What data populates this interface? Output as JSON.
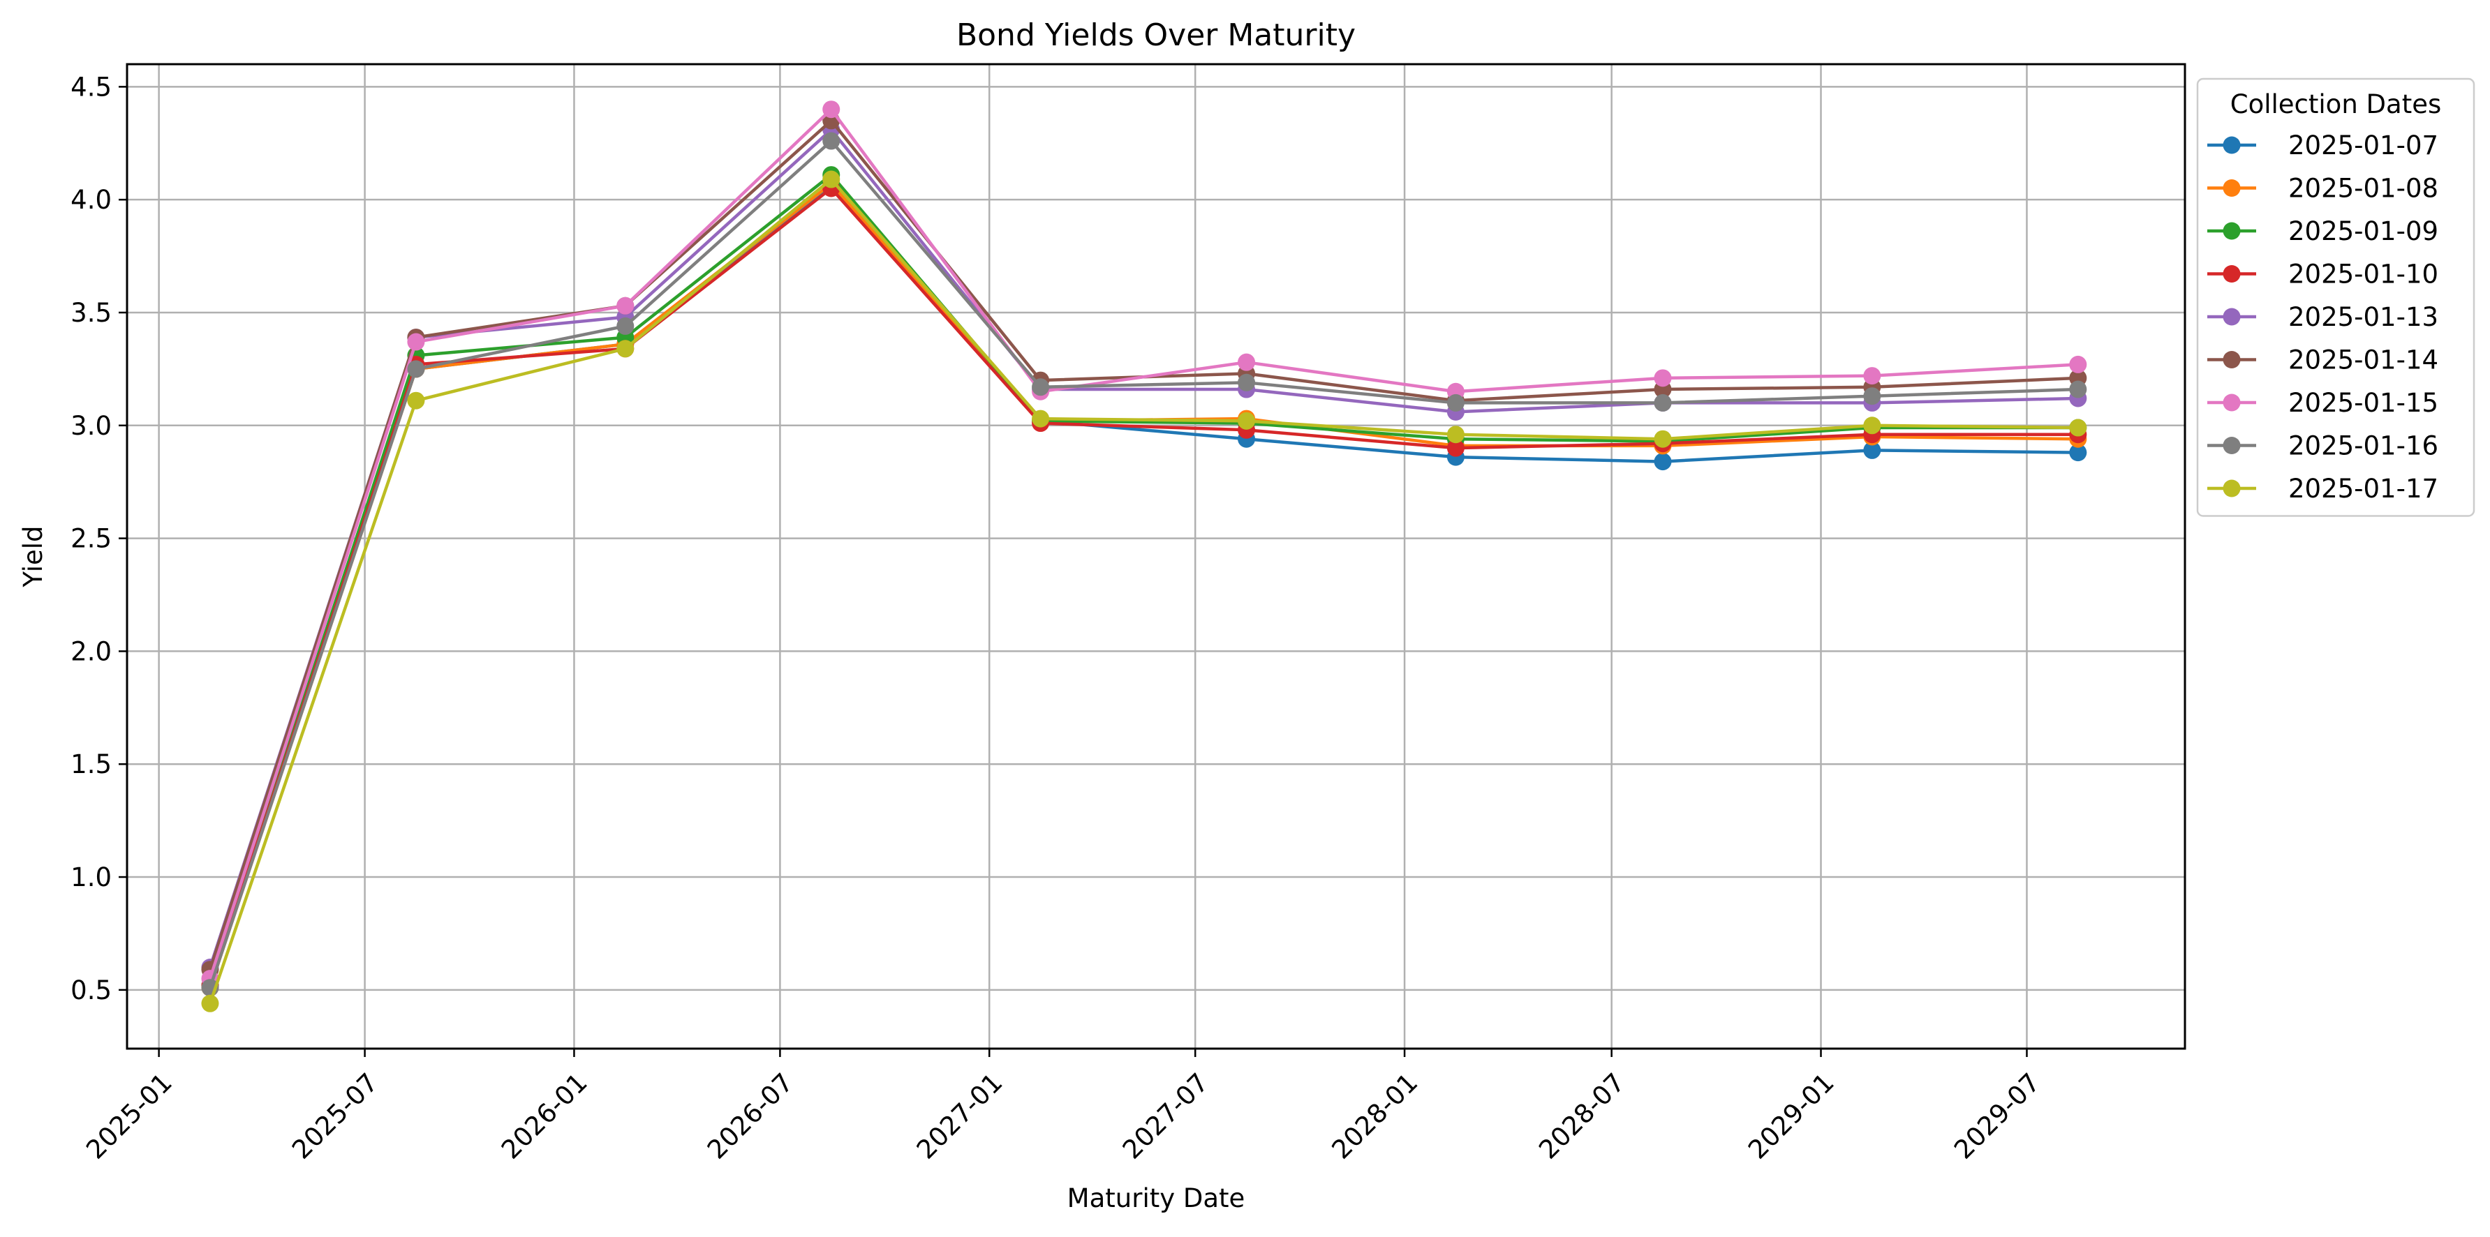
{
  "chart_data": {
    "type": "line",
    "title": "Bond Yields Over Maturity",
    "xlabel": "Maturity Date",
    "ylabel": "Yield",
    "x_scale": "date",
    "xlim": [
      "2024-12-04",
      "2029-11-17"
    ],
    "ylim": [
      0.24,
      4.6
    ],
    "grid": true,
    "x_ticks": [
      "2025-01",
      "2025-07",
      "2026-01",
      "2026-07",
      "2027-01",
      "2027-07",
      "2028-01",
      "2028-07",
      "2029-01",
      "2029-07"
    ],
    "y_ticks": [
      "0.5",
      "1.0",
      "1.5",
      "2.0",
      "2.5",
      "3.0",
      "3.5",
      "4.0",
      "4.5"
    ],
    "legend": {
      "title": "Collection Dates",
      "placement": "outside-right-top"
    },
    "x": [
      "2025-02-15",
      "2025-08-15",
      "2026-02-15",
      "2026-08-15",
      "2027-02-15",
      "2027-08-15",
      "2028-02-15",
      "2028-08-15",
      "2029-02-15",
      "2029-08-15"
    ],
    "series": [
      {
        "name": "2025-01-07",
        "color": "#1f77b4",
        "values": [
          0.52,
          3.25,
          3.36,
          4.06,
          3.02,
          2.94,
          2.86,
          2.84,
          2.89,
          2.88
        ]
      },
      {
        "name": "2025-01-08",
        "color": "#ff7f0e",
        "values": [
          0.51,
          3.25,
          3.36,
          4.07,
          3.02,
          3.03,
          2.91,
          2.91,
          2.95,
          2.94
        ]
      },
      {
        "name": "2025-01-09",
        "color": "#2ca02c",
        "values": [
          0.52,
          3.31,
          3.39,
          4.11,
          3.02,
          3.01,
          2.94,
          2.93,
          2.99,
          2.99
        ]
      },
      {
        "name": "2025-01-10",
        "color": "#d62728",
        "values": [
          0.52,
          3.27,
          3.34,
          4.05,
          3.01,
          2.98,
          2.9,
          2.92,
          2.96,
          2.96
        ]
      },
      {
        "name": "2025-01-13",
        "color": "#9467bd",
        "values": [
          0.6,
          3.39,
          3.48,
          4.31,
          3.16,
          3.16,
          3.06,
          3.1,
          3.1,
          3.12
        ]
      },
      {
        "name": "2025-01-14",
        "color": "#8c564b",
        "values": [
          0.59,
          3.39,
          3.53,
          4.35,
          3.2,
          3.23,
          3.11,
          3.16,
          3.17,
          3.21
        ]
      },
      {
        "name": "2025-01-15",
        "color": "#e377c2",
        "values": [
          0.55,
          3.37,
          3.53,
          4.4,
          3.15,
          3.28,
          3.15,
          3.21,
          3.22,
          3.27
        ]
      },
      {
        "name": "2025-01-16",
        "color": "#7f7f7f",
        "values": [
          0.51,
          3.25,
          3.44,
          4.26,
          3.17,
          3.19,
          3.1,
          3.1,
          3.13,
          3.16
        ]
      },
      {
        "name": "2025-01-17",
        "color": "#bcbd22",
        "values": [
          0.44,
          3.11,
          3.34,
          4.09,
          3.03,
          3.02,
          2.96,
          2.94,
          3.0,
          2.99
        ]
      }
    ]
  }
}
